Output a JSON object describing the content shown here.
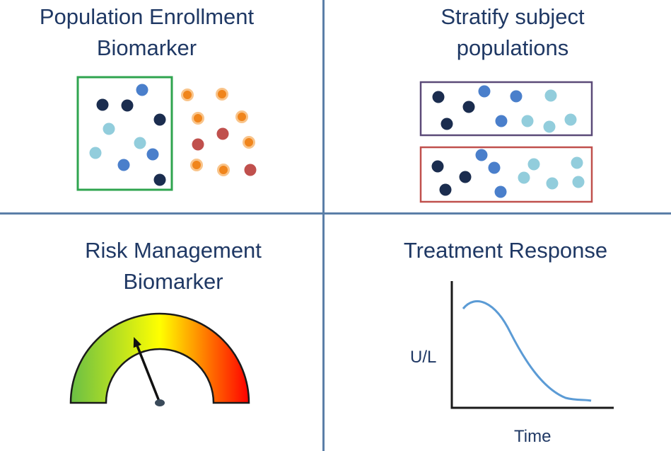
{
  "quadrants": {
    "top_left": {
      "title_line1": "Population Enrollment",
      "title_line2": "Biomarker",
      "box_color": "#2fa44f"
    },
    "top_right": {
      "title_line1": "Stratify subject",
      "title_line2": "populations",
      "box_colors": [
        "#5b4a78",
        "#c0504d"
      ]
    },
    "bottom_left": {
      "title_line1": "Risk Management",
      "title_line2": "Biomarker",
      "gauge_colors": [
        "#6abf45",
        "#ffff00",
        "#ff0000"
      ],
      "needle_level": 0.38
    },
    "bottom_right": {
      "title": "Treatment Response",
      "ylabel": "U/L",
      "xlabel": "Time",
      "curve_color": "#5b9bd5"
    }
  },
  "dot_colors": {
    "dark_navy": "#1b2d4f",
    "medium_blue": "#4a7fcb",
    "light_blue": "#92cddc",
    "orange": "#f0851c",
    "red": "#c0504d"
  },
  "divider_color": "#5b7fa8"
}
